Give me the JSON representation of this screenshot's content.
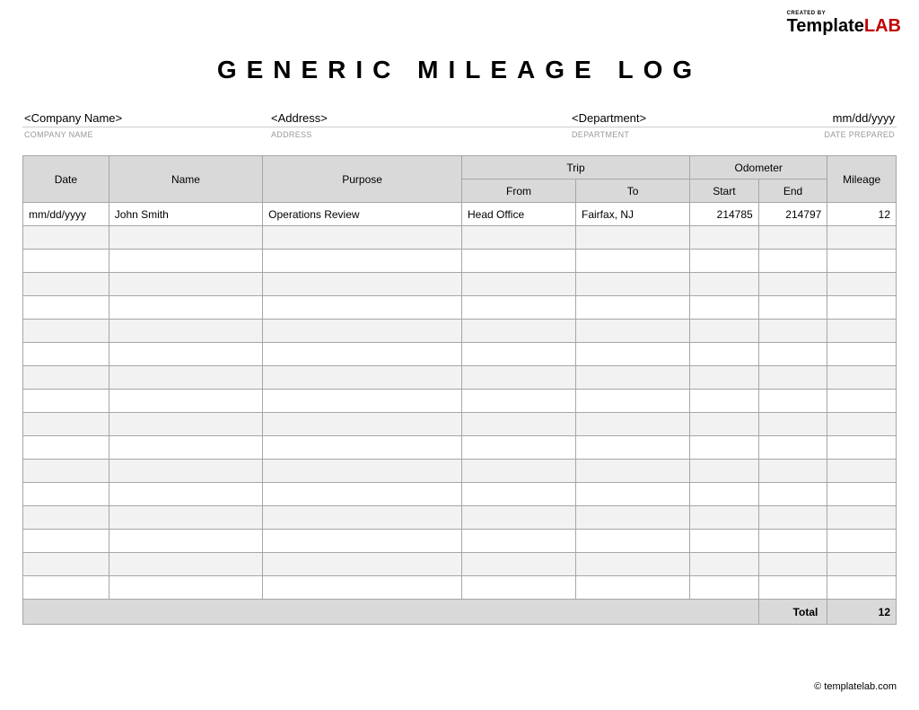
{
  "logo": {
    "created_by": "CREATED BY",
    "brand_part1": "Template",
    "brand_part2": "LAB",
    "accent_color": "#c00000"
  },
  "title": "GENERIC MILEAGE LOG",
  "meta": {
    "company": {
      "value": "<Company Name>",
      "label": "COMPANY NAME"
    },
    "address": {
      "value": "<Address>",
      "label": "ADDRESS"
    },
    "department": {
      "value": "<Department>",
      "label": "DEPARTMENT"
    },
    "date_prepared": {
      "value": "mm/dd/yyyy",
      "label": "DATE PREPARED"
    }
  },
  "table": {
    "type": "table",
    "header_bg": "#d9d9d9",
    "border_color": "#a6a6a6",
    "alt_row_bg": "#f2f2f2",
    "columns": {
      "date": "Date",
      "name": "Name",
      "purpose": "Purpose",
      "trip_group": "Trip",
      "from": "From",
      "to": "To",
      "odometer_group": "Odometer",
      "start": "Start",
      "end": "End",
      "mileage": "Mileage"
    },
    "rows": [
      {
        "date": "mm/dd/yyyy",
        "name": "John Smith",
        "purpose": "Operations Review",
        "from": "Head Office",
        "to": "Fairfax, NJ",
        "start": "214785",
        "end": "214797",
        "mileage": "12"
      }
    ],
    "empty_row_count": 16,
    "total_label": "Total",
    "total_value": "12"
  },
  "footer": "© templatelab.com"
}
